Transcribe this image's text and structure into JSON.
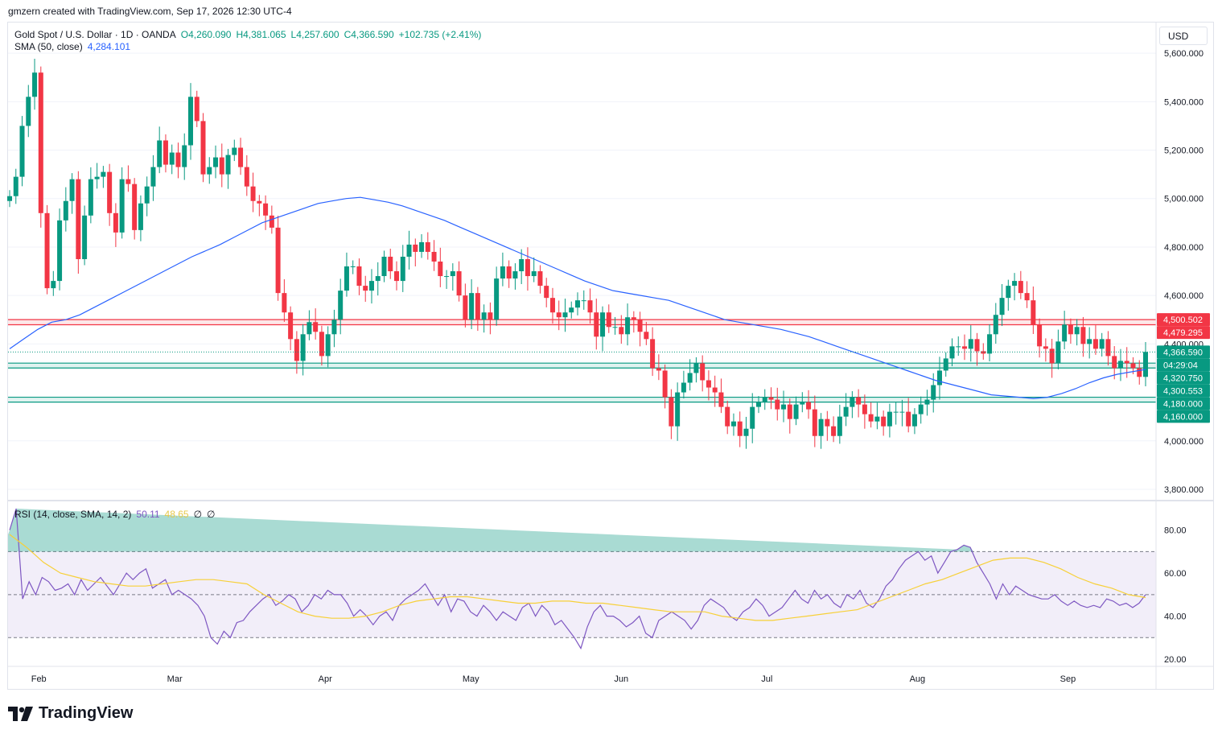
{
  "attribution": "gmzern created with TradingView.com, Sep 17, 2026 12:30 UTC-4",
  "currency": "USD",
  "logo_text": "TradingView",
  "legend": {
    "symbol": "Gold Spot / U.S. Dollar · 1D · OANDA",
    "open": "O4,260.090",
    "high": "H4,381.065",
    "low": "L4,257.600",
    "close": "C4,366.590",
    "change": "+102.735 (+2.41%)",
    "sma_label": "SMA (50, close)",
    "sma_value": "4,284.101"
  },
  "rsi_legend": {
    "label": "RSI (14, close, SMA, 14, 2)",
    "rsi_value": "50.11",
    "ma_value": "48.65",
    "extra1": "∅",
    "extra2": "∅"
  },
  "colors": {
    "up": "#089981",
    "down": "#f23645",
    "sma": "#2962ff",
    "rsi": "#7e57c2",
    "rsi_ma": "#f7d038",
    "resistance": "#f23645",
    "support": "#089981"
  },
  "chart_data": [
    {
      "type": "candlestick",
      "title": "Gold Spot / U.S. Dollar · 1D · OANDA",
      "ylim": [
        3760,
        5720
      ],
      "y_ticks": [
        "5,600.000",
        "5,400.000",
        "5,200.000",
        "5,000.000",
        "4,800.000",
        "4,600.000",
        "4,400.000",
        "4,000.000",
        "3,800.000"
      ],
      "x_ticks": [
        {
          "label": "Feb",
          "date": "2026-02-01"
        },
        {
          "label": "Mar",
          "date": "2026-03-01"
        },
        {
          "label": "Apr",
          "date": "2026-04-01"
        },
        {
          "label": "May",
          "date": "2026-05-01"
        },
        {
          "label": "Jun",
          "date": "2026-06-01"
        },
        {
          "label": "Jul",
          "date": "2026-07-01"
        },
        {
          "label": "Aug",
          "date": "2026-08-01"
        },
        {
          "label": "Sep",
          "date": "2026-09-01"
        }
      ],
      "x_range": [
        "2026-01-26",
        "2026-09-17"
      ],
      "close_series": [
        5010,
        5090,
        5300,
        5420,
        5520,
        4940,
        4630,
        4660,
        4910,
        4990,
        5080,
        4750,
        4930,
        5080,
        5090,
        5110,
        4940,
        4860,
        5080,
        5060,
        4870,
        4980,
        5050,
        5130,
        5240,
        5140,
        5190,
        5130,
        5220,
        5420,
        5320,
        5100,
        5130,
        5170,
        5100,
        5180,
        5210,
        5130,
        5050,
        4990,
        4980,
        4930,
        4880,
        4610,
        4530,
        4420,
        4330,
        4440,
        4490,
        4450,
        4350,
        4440,
        4500,
        4620,
        4720,
        4720,
        4640,
        4620,
        4660,
        4680,
        4760,
        4700,
        4660,
        4760,
        4810,
        4780,
        4820,
        4780,
        4740,
        4680,
        4680,
        4700,
        4600,
        4500,
        4610,
        4500,
        4530,
        4500,
        4670,
        4720,
        4670,
        4700,
        4750,
        4680,
        4700,
        4640,
        4590,
        4530,
        4510,
        4530,
        4550,
        4580,
        4580,
        4530,
        4430,
        4530,
        4470,
        4470,
        4440,
        4510,
        4500,
        4450,
        4420,
        4300,
        4290,
        4180,
        4060,
        4200,
        4240,
        4280,
        4320,
        4250,
        4220,
        4200,
        4140,
        4060,
        4080,
        4020,
        4050,
        4140,
        4160,
        4180,
        4170,
        4130,
        4150,
        4090,
        4150,
        4160,
        4130,
        4020,
        4090,
        4060,
        4020,
        4100,
        4140,
        4180,
        4150,
        4110,
        4080,
        4100,
        4060,
        4120,
        4120,
        4120,
        4060,
        4110,
        4150,
        4170,
        4230,
        4290,
        4340,
        4390,
        4390,
        4380,
        4420,
        4370,
        4360,
        4440,
        4520,
        4590,
        4640,
        4660,
        4610,
        4580,
        4480,
        4390,
        4380,
        4320,
        4410,
        4480,
        4440,
        4470,
        4400,
        4420,
        4380,
        4420,
        4350,
        4300,
        4330,
        4320,
        4300,
        4264,
        4367
      ],
      "sma_series": [
        4380,
        4420,
        4460,
        4490,
        4500,
        4520,
        4550,
        4580,
        4610,
        4640,
        4670,
        4700,
        4730,
        4760,
        4785,
        4810,
        4840,
        4870,
        4900,
        4920,
        4940,
        4960,
        4980,
        4990,
        5000,
        5005,
        4995,
        4985,
        4970,
        4950,
        4930,
        4910,
        4885,
        4860,
        4835,
        4810,
        4785,
        4760,
        4735,
        4710,
        4685,
        4660,
        4640,
        4620,
        4610,
        4600,
        4590,
        4580,
        4560,
        4540,
        4520,
        4500,
        4490,
        4480,
        4470,
        4460,
        4445,
        4430,
        4410,
        4390,
        4370,
        4350,
        4330,
        4310,
        4290,
        4270,
        4250,
        4235,
        4220,
        4205,
        4190,
        4185,
        4180,
        4175,
        4180,
        4195,
        4215,
        4240,
        4260,
        4275,
        4285,
        4295
      ],
      "candles_note": "",
      "price_labels": [
        {
          "text": "4,500.502",
          "value": 4500.502,
          "color": "#f23645"
        },
        {
          "text": "4,479.295",
          "value": 4479.295,
          "color": "#f23645"
        },
        {
          "text": "4,366.590",
          "value": 4366.59,
          "color": "#089981"
        },
        {
          "text": "04:29:04",
          "value": 4333,
          "color": "#089981"
        },
        {
          "text": "4,320.750",
          "value": 4320.75,
          "color": "#089981"
        },
        {
          "text": "4,300.553",
          "value": 4300.553,
          "color": "#089981"
        },
        {
          "text": "4,180.000",
          "value": 4180,
          "color": "#089981"
        },
        {
          "text": "4,160.000",
          "value": 4160,
          "color": "#089981"
        }
      ],
      "zones": [
        {
          "kind": "resistance",
          "from": 4479.295,
          "to": 4500.502
        },
        {
          "kind": "support",
          "from": 4300.553,
          "to": 4320.75
        },
        {
          "kind": "support",
          "from": 4160,
          "to": 4180
        }
      ],
      "last_price": 4366.59
    },
    {
      "type": "line",
      "title": "RSI (14, close, SMA, 14, 2)",
      "ylim": [
        17,
        93
      ],
      "y_ticks": [
        "80.00",
        "60.00",
        "40.00",
        "20.00"
      ],
      "bands": [
        30,
        50,
        70
      ],
      "rsi_series": [
        80,
        90,
        48,
        56,
        50,
        58,
        56,
        52,
        53,
        55,
        50,
        57,
        52,
        55,
        58,
        54,
        50,
        55,
        60,
        57,
        60,
        62,
        53,
        55,
        57,
        50,
        52,
        50,
        48,
        45,
        40,
        30,
        27,
        33,
        30,
        37,
        38,
        42,
        45,
        48,
        50,
        45,
        47,
        50,
        48,
        42,
        45,
        50,
        48,
        52,
        50,
        50,
        46,
        40,
        43,
        40,
        36,
        40,
        42,
        38,
        45,
        48,
        50,
        52,
        55,
        50,
        45,
        50,
        42,
        48,
        47,
        42,
        40,
        45,
        42,
        38,
        42,
        40,
        38,
        44,
        46,
        40,
        45,
        42,
        36,
        38,
        34,
        30,
        25,
        35,
        42,
        45,
        40,
        40,
        38,
        35,
        37,
        40,
        32,
        30,
        38,
        40,
        42,
        40,
        38,
        34,
        38,
        45,
        48,
        46,
        44,
        40,
        38,
        42,
        44,
        48,
        45,
        40,
        42,
        44,
        48,
        52,
        48,
        46,
        52,
        48,
        50,
        46,
        44,
        50,
        48,
        52,
        46,
        44,
        48,
        54,
        57,
        62,
        66,
        68,
        70,
        66,
        68,
        60,
        65,
        70,
        71,
        73,
        72,
        65,
        60,
        55,
        48,
        55,
        50,
        54,
        52,
        50,
        49,
        48,
        48,
        50,
        47,
        45,
        47,
        45,
        44,
        45,
        44,
        48,
        47,
        45,
        46,
        44,
        46,
        50
      ],
      "ma_series": [
        78,
        72,
        65,
        60,
        58,
        56,
        55,
        54,
        54,
        55,
        56,
        57,
        57,
        56,
        55,
        50,
        46,
        42,
        40,
        39,
        39,
        40,
        42,
        45,
        47,
        48,
        49,
        49,
        48,
        47,
        46,
        46,
        47,
        47,
        46,
        46,
        45,
        44,
        43,
        42,
        42,
        42,
        40,
        39,
        38,
        38,
        39,
        40,
        41,
        42,
        43,
        46,
        49,
        52,
        55,
        57,
        60,
        63,
        66,
        67,
        67,
        65,
        62,
        58,
        55,
        53,
        50,
        48.65
      ]
    }
  ]
}
